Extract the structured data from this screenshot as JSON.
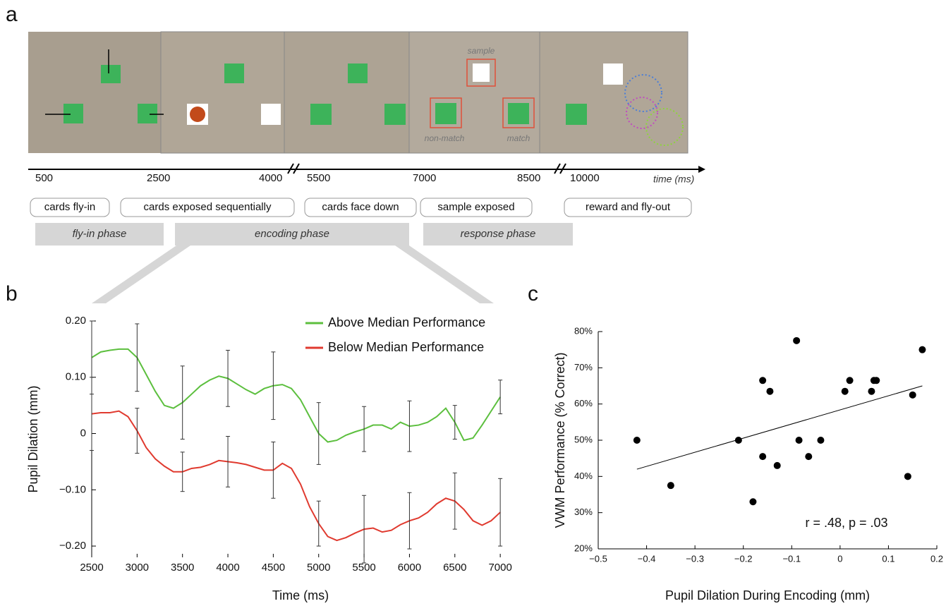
{
  "panel_labels": [
    "a",
    "b",
    "c"
  ],
  "timeline": {
    "card_labels": [
      "sample",
      "non-match",
      "match"
    ],
    "times": [
      "500",
      "2500",
      "4000",
      "5500",
      "7000",
      "8500",
      "10000"
    ],
    "axis_label": "time (ms)",
    "events": [
      "cards fly-in",
      "cards exposed sequentially",
      "cards face down",
      "sample exposed",
      "reward and fly-out"
    ],
    "phases": [
      "fly-in phase",
      "encoding phase",
      "response phase"
    ]
  },
  "chart_data": [
    {
      "type": "line",
      "x_label": "Time (ms)",
      "y_label": "Pupil Dilation (mm)",
      "x": [
        2500,
        2600,
        2700,
        2800,
        2900,
        3000,
        3100,
        3200,
        3300,
        3400,
        3500,
        3600,
        3700,
        3800,
        3900,
        4000,
        4100,
        4200,
        4300,
        4400,
        4500,
        4600,
        4700,
        4800,
        4900,
        5000,
        5100,
        5200,
        5300,
        5400,
        5500,
        5600,
        5700,
        5800,
        5900,
        6000,
        6100,
        6200,
        6300,
        6400,
        6500,
        6600,
        6700,
        6800,
        6900,
        7000
      ],
      "xlim": [
        2500,
        7100
      ],
      "xticks": [
        2500,
        3000,
        3500,
        4000,
        4500,
        5000,
        5500,
        6000,
        6500,
        7000
      ],
      "ylim": [
        -0.22,
        0.2
      ],
      "yticks": [
        {
          "value": 0.2,
          "label": "0.20"
        },
        {
          "value": 0.1,
          "label": "0.10"
        },
        0,
        {
          "value": -0.1,
          "label": "−0.10"
        },
        {
          "value": -0.2,
          "label": "−0.20"
        }
      ],
      "series": [
        {
          "name": "Above Median Performance",
          "color": "#5cbf3e",
          "values": [
            0.135,
            0.145,
            0.148,
            0.15,
            0.15,
            0.135,
            0.105,
            0.075,
            0.05,
            0.045,
            0.055,
            0.07,
            0.085,
            0.095,
            0.102,
            0.098,
            0.088,
            0.078,
            0.07,
            0.08,
            0.085,
            0.087,
            0.08,
            0.06,
            0.03,
            0.0,
            -0.015,
            -0.012,
            -0.003,
            0.003,
            0.008,
            0.015,
            0.015,
            0.008,
            0.02,
            0.013,
            0.015,
            0.02,
            0.03,
            0.045,
            0.02,
            -0.012,
            -0.008,
            0.015,
            0.04,
            0.065
          ],
          "errors": [
            0.065,
            null,
            null,
            null,
            null,
            0.06,
            null,
            null,
            null,
            null,
            0.065,
            null,
            null,
            null,
            null,
            0.05,
            null,
            null,
            null,
            null,
            0.06,
            null,
            null,
            null,
            null,
            0.055,
            null,
            null,
            null,
            null,
            0.04,
            null,
            null,
            null,
            null,
            0.045,
            null,
            null,
            null,
            null,
            0.03,
            null,
            null,
            null,
            null,
            0.03
          ]
        },
        {
          "name": "Below Median Performance",
          "color": "#e03a2f",
          "values": [
            0.035,
            0.037,
            0.037,
            0.04,
            0.03,
            0.005,
            -0.025,
            -0.045,
            -0.058,
            -0.068,
            -0.068,
            -0.062,
            -0.06,
            -0.055,
            -0.048,
            -0.05,
            -0.052,
            -0.055,
            -0.06,
            -0.065,
            -0.065,
            -0.053,
            -0.062,
            -0.09,
            -0.13,
            -0.16,
            -0.183,
            -0.19,
            -0.185,
            -0.177,
            -0.17,
            -0.168,
            -0.175,
            -0.172,
            -0.162,
            -0.155,
            -0.15,
            -0.14,
            -0.125,
            -0.115,
            -0.12,
            -0.135,
            -0.155,
            -0.163,
            -0.155,
            -0.14
          ],
          "errors": [
            0.065,
            null,
            null,
            null,
            null,
            0.04,
            null,
            null,
            null,
            null,
            0.035,
            null,
            null,
            null,
            null,
            0.045,
            null,
            null,
            null,
            null,
            0.05,
            null,
            null,
            null,
            null,
            0.04,
            null,
            null,
            null,
            null,
            0.06,
            null,
            null,
            null,
            null,
            0.05,
            null,
            null,
            null,
            null,
            0.05,
            null,
            null,
            null,
            null,
            0.06
          ]
        }
      ]
    },
    {
      "type": "scatter",
      "x_label": "Pupil Dilation During Encoding (mm)",
      "y_label": "VWM Performance (% Correct)",
      "annotation": "r = .48, p = .03",
      "color": "#000000",
      "x": [
        -0.42,
        -0.35,
        -0.21,
        -0.18,
        -0.16,
        -0.16,
        -0.145,
        -0.13,
        -0.09,
        -0.085,
        -0.065,
        -0.04,
        0.01,
        0.02,
        0.065,
        0.07,
        0.075,
        0.14,
        0.15,
        0.17
      ],
      "values": [
        50,
        37.5,
        50,
        33,
        45.5,
        66.5,
        63.5,
        43,
        77.5,
        50,
        45.5,
        50,
        63.5,
        66.5,
        63.5,
        66.5,
        66.5,
        40,
        62.5,
        75
      ],
      "fit_line": {
        "x": [
          -0.42,
          0.17
        ],
        "values": [
          42,
          65
        ]
      },
      "xlim": [
        -0.5,
        0.2
      ],
      "xticks": [
        {
          "value": -0.5,
          "label": "−0.5"
        },
        {
          "value": -0.4,
          "label": "−0.4"
        },
        {
          "value": -0.3,
          "label": "−0.3"
        },
        {
          "value": -0.2,
          "label": "−0.2"
        },
        {
          "value": -0.1,
          "label": "−0.1"
        },
        0,
        0.1,
        0.2
      ],
      "ylim": [
        20,
        80
      ],
      "yticks": [
        {
          "value": 20,
          "label": "20%"
        },
        {
          "value": 30,
          "label": "30%"
        },
        {
          "value": 40,
          "label": "40%"
        },
        {
          "value": 50,
          "label": "50%"
        },
        {
          "value": 60,
          "label": "60%"
        },
        {
          "value": 70,
          "label": "70%"
        },
        {
          "value": 80,
          "label": "80%"
        }
      ]
    }
  ]
}
